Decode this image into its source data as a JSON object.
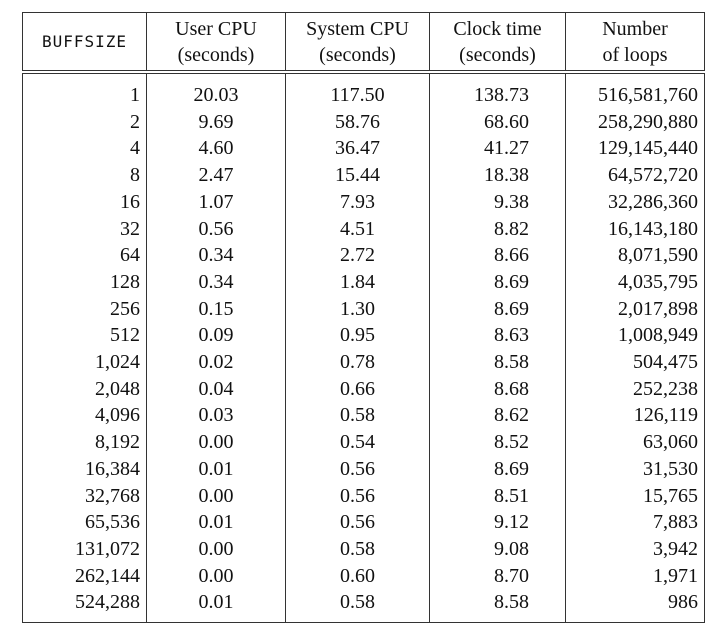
{
  "table": {
    "headers": [
      {
        "line1": "BUFFSIZE",
        "line2": ""
      },
      {
        "line1": "User CPU",
        "line2": "(seconds)"
      },
      {
        "line1": "System CPU",
        "line2": "(seconds)"
      },
      {
        "line1": "Clock time",
        "line2": "(seconds)"
      },
      {
        "line1": "Number",
        "line2": "of loops"
      }
    ],
    "rows": [
      [
        "1",
        "20.03",
        "117.50",
        "138.73",
        "516,581,760"
      ],
      [
        "2",
        "9.69",
        "58.76",
        "68.60",
        "258,290,880"
      ],
      [
        "4",
        "4.60",
        "36.47",
        "41.27",
        "129,145,440"
      ],
      [
        "8",
        "2.47",
        "15.44",
        "18.38",
        "64,572,720"
      ],
      [
        "16",
        "1.07",
        "7.93",
        "9.38",
        "32,286,360"
      ],
      [
        "32",
        "0.56",
        "4.51",
        "8.82",
        "16,143,180"
      ],
      [
        "64",
        "0.34",
        "2.72",
        "8.66",
        "8,071,590"
      ],
      [
        "128",
        "0.34",
        "1.84",
        "8.69",
        "4,035,795"
      ],
      [
        "256",
        "0.15",
        "1.30",
        "8.69",
        "2,017,898"
      ],
      [
        "512",
        "0.09",
        "0.95",
        "8.63",
        "1,008,949"
      ],
      [
        "1,024",
        "0.02",
        "0.78",
        "8.58",
        "504,475"
      ],
      [
        "2,048",
        "0.04",
        "0.66",
        "8.68",
        "252,238"
      ],
      [
        "4,096",
        "0.03",
        "0.58",
        "8.62",
        "126,119"
      ],
      [
        "8,192",
        "0.00",
        "0.54",
        "8.52",
        "63,060"
      ],
      [
        "16,384",
        "0.01",
        "0.56",
        "8.69",
        "31,530"
      ],
      [
        "32,768",
        "0.00",
        "0.56",
        "8.51",
        "15,765"
      ],
      [
        "65,536",
        "0.01",
        "0.56",
        "9.12",
        "7,883"
      ],
      [
        "131,072",
        "0.00",
        "0.58",
        "9.08",
        "3,942"
      ],
      [
        "262,144",
        "0.00",
        "0.60",
        "8.70",
        "1,971"
      ],
      [
        "524,288",
        "0.01",
        "0.58",
        "8.58",
        "986"
      ]
    ]
  }
}
